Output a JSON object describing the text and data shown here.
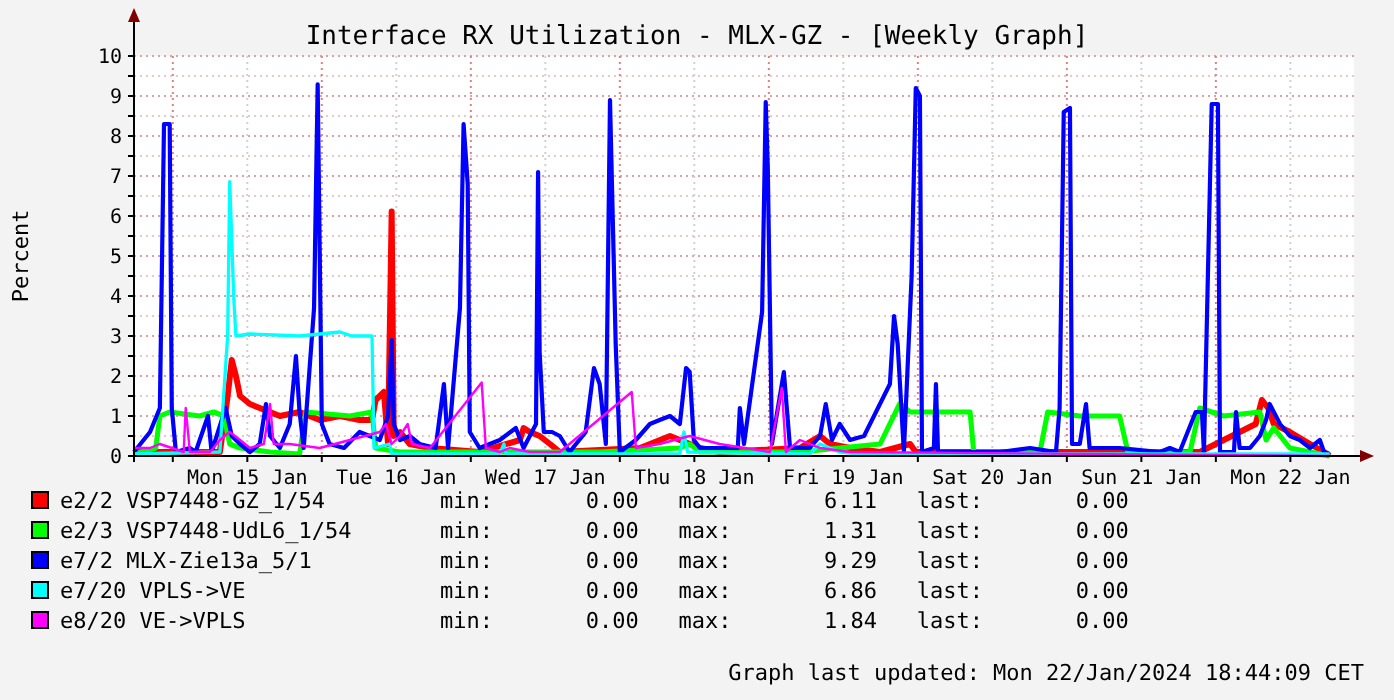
{
  "chart_data": {
    "type": "line",
    "title": "Interface RX Utilization - MLX-GZ - [Weekly Graph]",
    "ylabel": "Percent",
    "grid": true,
    "legend": "bottom",
    "xlim": [
      "2024-01-14T17:45",
      "2024-01-22T22:15"
    ],
    "xticks": [
      {
        "value": "2024-01-15T00:00",
        "label": null
      },
      {
        "value": "2024-01-15T12:00",
        "label": "Mon 15 Jan"
      },
      {
        "value": "2024-01-16T00:00",
        "label": null
      },
      {
        "value": "2024-01-16T12:00",
        "label": "Tue 16 Jan"
      },
      {
        "value": "2024-01-17T00:00",
        "label": null
      },
      {
        "value": "2024-01-17T12:00",
        "label": "Wed 17 Jan"
      },
      {
        "value": "2024-01-18T00:00",
        "label": null
      },
      {
        "value": "2024-01-18T12:00",
        "label": "Thu 18 Jan"
      },
      {
        "value": "2024-01-19T00:00",
        "label": null
      },
      {
        "value": "2024-01-19T12:00",
        "label": "Fri 19 Jan"
      },
      {
        "value": "2024-01-20T00:00",
        "label": null
      },
      {
        "value": "2024-01-20T12:00",
        "label": "Sat 20 Jan"
      },
      {
        "value": "2024-01-21T00:00",
        "label": null
      },
      {
        "value": "2024-01-21T12:00",
        "label": "Sun 21 Jan"
      },
      {
        "value": "2024-01-22T00:00",
        "label": null
      },
      {
        "value": "2024-01-22T12:00",
        "label": "Mon 22 Jan"
      }
    ],
    "ylim": [
      0,
      10
    ],
    "yticks": [
      0,
      {
        "value": 0.5,
        "label": null
      },
      1,
      {
        "value": 1.5,
        "label": null
      },
      2,
      {
        "value": 2.5,
        "label": null
      },
      3,
      {
        "value": 3.5,
        "label": null
      },
      4,
      {
        "value": 4.5,
        "label": null
      },
      5,
      {
        "value": 5.5,
        "label": null
      },
      6,
      {
        "value": 6.5,
        "label": null
      },
      7,
      {
        "value": 7.5,
        "label": null
      },
      8,
      {
        "value": 8.5,
        "label": null
      },
      9,
      {
        "value": 9.5,
        "label": null
      },
      10
    ],
    "annotations": [
      "min:       0.00   max:       6.11   last:       0.00",
      "min:       0.00   max:       1.31   last:       0.00",
      "min:       0.00   max:       9.29   last:       0.00",
      "min:       0.00   max:       6.86   last:       0.00",
      "min:       0.00   max:       1.84   last:       0.00",
      "Graph last updated: Mon 22/Jan/2024 18:44:09 CET"
    ],
    "series": [
      {
        "name": "e2/2 VSP7448-GZ_1/54",
        "color": "#ff0000",
        "x": [
          "2024-01-14T17:45",
          "2024-01-15T07:35",
          "2024-01-15T08:50",
          "2024-01-15T09:30",
          "2024-01-15T10:10",
          "2024-01-15T10:50",
          "2024-01-15T12:25",
          "2024-01-15T14:00",
          "2024-01-15T17:15",
          "2024-01-15T20:25",
          "2024-01-15T23:40",
          "2024-01-16T02:55",
          "2024-01-16T06:05",
          "2024-01-16T08:05",
          "2024-01-16T08:40",
          "2024-01-16T10:00",
          "2024-01-16T10:40",
          "2024-01-16T11:15",
          "2024-01-16T11:35",
          "2024-01-16T12:35",
          "2024-01-16T14:10",
          "2024-01-16T17:25",
          "2024-01-17T01:25",
          "2024-01-17T07:55",
          "2024-01-17T08:30",
          "2024-01-17T09:30",
          "2024-01-17T11:05",
          "2024-01-17T12:45",
          "2024-01-17T14:20",
          "2024-01-18T03:15",
          "2024-01-18T08:05",
          "2024-01-18T09:40",
          "2024-01-18T12:55",
          "2024-01-18T16:05",
          "2024-01-19T05:00",
          "2024-01-19T08:15",
          "2024-01-19T09:50",
          "2024-01-19T13:05",
          "2024-01-19T17:55",
          "2024-01-19T22:45",
          "2024-01-19T23:40",
          "2024-01-20T13:15",
          "2024-01-21T02:05",
          "2024-01-21T21:25",
          "2024-01-22T06:25",
          "2024-01-22T07:25",
          "2024-01-22T08:25",
          "2024-01-22T09:20",
          "2024-01-22T11:55",
          "2024-01-22T15:10",
          "2024-01-22T17:25",
          "2024-01-22T18:20"
        ],
        "values": [
          0.1,
          0.1,
          1.5,
          2.4,
          2.0,
          1.5,
          1.3,
          1.2,
          1.0,
          1.1,
          0.9,
          1.0,
          0.9,
          0.9,
          1.4,
          1.6,
          0.3,
          6.11,
          0.5,
          0.6,
          0.3,
          0.2,
          0.1,
          0.4,
          0.7,
          0.6,
          0.5,
          0.3,
          0.1,
          0.2,
          0.5,
          0.4,
          0.2,
          0.1,
          0.2,
          0.5,
          0.3,
          0.2,
          0.1,
          0.3,
          0.1,
          0.1,
          0.1,
          0.1,
          0.8,
          1.4,
          1.2,
          0.8,
          0.6,
          0.3,
          0.1,
          0
        ]
      },
      {
        "name": "e2/3 VSP7448-UdL6_1/54",
        "color": "#00ff00",
        "x": [
          "2024-01-14T17:45",
          "2024-01-14T21:15",
          "2024-01-14T21:55",
          "2024-01-14T23:30",
          "2024-01-15T04:20",
          "2024-01-15T06:35",
          "2024-01-15T08:15",
          "2024-01-15T09:10",
          "2024-01-15T10:50",
          "2024-01-15T15:40",
          "2024-01-15T20:25",
          "2024-01-15T20:45",
          "2024-01-15T21:25",
          "2024-01-16T04:30",
          "2024-01-16T08:05",
          "2024-01-16T08:40",
          "2024-01-16T12:35",
          "2024-01-17T20:45",
          "2024-01-18T09:40",
          "2024-01-18T11:15",
          "2024-01-18T12:55",
          "2024-01-19T05:00",
          "2024-01-19T17:55",
          "2024-01-19T21:05",
          "2024-01-19T22:45",
          "2024-01-20T08:25",
          "2024-01-20T09:00",
          "2024-01-20T19:40",
          "2024-01-20T20:55",
          "2024-01-21T02:05",
          "2024-01-21T08:30",
          "2024-01-21T09:50",
          "2024-01-21T19:50",
          "2024-01-21T21:25",
          "2024-01-22T01:15",
          "2024-01-22T07:05",
          "2024-01-22T08:05",
          "2024-01-22T09:20",
          "2024-01-22T11:55",
          "2024-01-22T15:10",
          "2024-01-22T18:20"
        ],
        "values": [
          0.05,
          0.2,
          1.0,
          1.1,
          1.0,
          1.1,
          1.0,
          0.3,
          0.2,
          0.1,
          0.05,
          0.4,
          1.1,
          1.0,
          1.1,
          0.2,
          0.1,
          0.1,
          0.2,
          0.3,
          0.1,
          0.1,
          0.3,
          1.31,
          1.1,
          1.1,
          0.1,
          0.1,
          1.1,
          1.0,
          1.0,
          0.1,
          0.1,
          1.2,
          1.0,
          1.1,
          0.4,
          0.7,
          0.2,
          0.1,
          0
        ]
      },
      {
        "name": "e7/2 MLX-Zie13a_5/1",
        "color": "#0000ff",
        "x": [
          "2024-01-14T17:45",
          "2024-01-14T20:20",
          "2024-01-14T21:55",
          "2024-01-14T22:35",
          "2024-01-14T23:30",
          "2024-01-14T23:50",
          "2024-01-15T00:30",
          "2024-01-15T02:45",
          "2024-01-15T03:40",
          "2024-01-15T05:40",
          "2024-01-15T06:15",
          "2024-01-15T08:30",
          "2024-01-15T09:30",
          "2024-01-15T10:50",
          "2024-01-15T12:25",
          "2024-01-15T14:00",
          "2024-01-15T15:00",
          "2024-01-15T15:40",
          "2024-01-15T17:15",
          "2024-01-15T18:50",
          "2024-01-15T19:50",
          "2024-01-15T20:25",
          "2024-01-15T21:05",
          "2024-01-15T22:45",
          "2024-01-15T23:20",
          "2024-01-16T00:00",
          "2024-01-16T01:15",
          "2024-01-16T03:35",
          "2024-01-16T06:05",
          "2024-01-16T09:20",
          "2024-01-16T10:40",
          "2024-01-16T11:15",
          "2024-01-16T11:35",
          "2024-01-16T12:35",
          "2024-01-16T14:10",
          "2024-01-16T15:45",
          "2024-01-16T18:20",
          "2024-01-16T19:40",
          "2024-01-16T20:20",
          "2024-01-16T22:15",
          "2024-01-16T22:50",
          "2024-01-16T23:30",
          "2024-01-16T23:50",
          "2024-01-17T01:25",
          "2024-01-17T04:40",
          "2024-01-17T07:15",
          "2024-01-17T08:30",
          "2024-01-17T10:30",
          "2024-01-17T10:50",
          "2024-01-17T11:05",
          "2024-01-17T11:45",
          "2024-01-17T13:05",
          "2024-01-17T14:20",
          "2024-01-17T15:55",
          "2024-01-17T18:30",
          "2024-01-17T19:50",
          "2024-01-17T20:45",
          "2024-01-17T21:45",
          "2024-01-17T22:25",
          "2024-01-17T23:20",
          "2024-01-18T00:00",
          "2024-01-18T02:35",
          "2024-01-18T04:50",
          "2024-01-18T06:25",
          "2024-01-18T08:05",
          "2024-01-18T09:40",
          "2024-01-18T10:40",
          "2024-01-18T11:15",
          "2024-01-18T11:55",
          "2024-01-18T12:55",
          "2024-01-18T19:00",
          "2024-01-18T19:20",
          "2024-01-18T20:00",
          "2024-01-18T22:55",
          "2024-01-18T23:30",
          "2024-01-18T23:50",
          "2024-01-19T00:30",
          "2024-01-19T02:25",
          "2024-01-19T03:25",
          "2024-01-19T06:35",
          "2024-01-19T08:15",
          "2024-01-19T09:10",
          "2024-01-19T10:10",
          "2024-01-19T11:25",
          "2024-01-19T13:05",
          "2024-01-19T15:20",
          "2024-01-19T19:30",
          "2024-01-19T20:10",
          "2024-01-19T20:45",
          "2024-01-19T21:45",
          "2024-01-19T23:00",
          "2024-01-19T23:40",
          "2024-01-20T00:20",
          "2024-01-20T00:40",
          "2024-01-20T02:35",
          "2024-01-20T02:55",
          "2024-01-20T03:15",
          "2024-01-20T05:10",
          "2024-01-20T13:15",
          "2024-01-20T18:05",
          "2024-01-20T22:15",
          "2024-01-20T22:50",
          "2024-01-20T23:30",
          "2024-01-21T00:30",
          "2024-01-21T00:50",
          "2024-01-21T02:05",
          "2024-01-21T03:05",
          "2024-01-21T03:40",
          "2024-01-21T08:30",
          "2024-01-21T15:00",
          "2024-01-21T16:35",
          "2024-01-21T18:10",
          "2024-01-21T20:45",
          "2024-01-21T21:45",
          "2024-01-21T22:05",
          "2024-01-21T23:20",
          "2024-01-22T00:20",
          "2024-01-22T00:40",
          "2024-01-22T02:55",
          "2024-01-22T03:15",
          "2024-01-22T03:50",
          "2024-01-22T05:30",
          "2024-01-22T07:05",
          "2024-01-22T08:05",
          "2024-01-22T08:40",
          "2024-01-22T09:40",
          "2024-01-22T10:20",
          "2024-01-22T11:55",
          "2024-01-22T13:30",
          "2024-01-22T15:10",
          "2024-01-22T16:45",
          "2024-01-22T17:25",
          "2024-01-22T18:20"
        ],
        "values": [
          0.1,
          0.6,
          1.2,
          8.3,
          8.3,
          1.2,
          0.1,
          0.2,
          0.1,
          1.0,
          0.1,
          1.2,
          0.5,
          0.3,
          0.1,
          0.3,
          1.3,
          0.5,
          0.2,
          0.8,
          2.5,
          1.1,
          0.2,
          3.7,
          9.29,
          0.8,
          0.3,
          0.2,
          0.6,
          0.4,
          1.0,
          2.9,
          0.8,
          0.4,
          0.5,
          0.3,
          0.2,
          1.8,
          0.2,
          3.7,
          8.3,
          6.8,
          0.6,
          0.2,
          0.4,
          0.7,
          0.2,
          0.8,
          7.1,
          2.6,
          0.6,
          0.6,
          0.5,
          0.1,
          0.6,
          2.2,
          1.8,
          0.3,
          8.9,
          2.8,
          0.1,
          0.4,
          0.8,
          0.9,
          1.0,
          0.8,
          2.2,
          2.1,
          0.4,
          0.2,
          0.2,
          1.2,
          0.3,
          3.6,
          8.85,
          7.2,
          0.3,
          2.1,
          0.2,
          0.2,
          0.5,
          1.3,
          0.4,
          0.8,
          0.4,
          0.5,
          1.8,
          3.5,
          2.8,
          0.1,
          4.5,
          9.2,
          9.0,
          0.1,
          0.2,
          1.8,
          0.1,
          0.1,
          0.1,
          0.2,
          0.1,
          1.2,
          8.6,
          8.7,
          0.3,
          0.3,
          1.3,
          0.2,
          0.2,
          0.1,
          0.2,
          0.1,
          1.1,
          1.1,
          0.1,
          8.8,
          8.8,
          0.1,
          0.1,
          1.1,
          0.2,
          0.2,
          0.5,
          0.9,
          1.3,
          1.0,
          0.8,
          0.5,
          0.4,
          0.2,
          0.4,
          0.1,
          0.05
        ]
      },
      {
        "name": "e7/20 VPLS->VE",
        "color": "#00ffff",
        "x": [
          "2024-01-14T17:45",
          "2024-01-15T07:35",
          "2024-01-15T08:50",
          "2024-01-15T09:10",
          "2024-01-15T09:50",
          "2024-01-15T10:10",
          "2024-01-15T12:25",
          "2024-01-15T20:25",
          "2024-01-16T02:55",
          "2024-01-16T04:50",
          "2024-01-16T08:05",
          "2024-01-16T08:25",
          "2024-01-16T10:55",
          "2024-01-16T11:15",
          "2024-01-17T04:40",
          "2024-01-17T05:20",
          "2024-01-17T05:40",
          "2024-01-18T09:40",
          "2024-01-18T10:20",
          "2024-01-18T10:55",
          "2024-01-19T06:35",
          "2024-01-19T08:15",
          "2024-01-19T09:50",
          "2024-01-19T11:25",
          "2024-01-19T14:40",
          "2024-01-22T18:20"
        ],
        "values": [
          0.05,
          0.1,
          3.0,
          6.86,
          3.9,
          3.0,
          3.05,
          3.0,
          3.1,
          3.0,
          3.0,
          0.2,
          0.3,
          0.05,
          0.05,
          0.3,
          0.05,
          0.05,
          0.6,
          0.1,
          0.05,
          0.3,
          0.2,
          0.1,
          0.05,
          0.05
        ]
      },
      {
        "name": "e8/20 VE->VPLS",
        "color": "#ff00ff",
        "x": [
          "2024-01-14T17:45",
          "2024-01-14T20:20",
          "2024-01-14T21:55",
          "2024-01-15T01:45",
          "2024-01-15T02:05",
          "2024-01-15T02:45",
          "2024-01-15T06:00",
          "2024-01-15T07:35",
          "2024-01-15T09:10",
          "2024-01-15T10:50",
          "2024-01-15T12:25",
          "2024-01-15T14:40",
          "2024-01-15T15:40",
          "2024-01-15T16:15",
          "2024-01-15T18:50",
          "2024-01-15T23:40",
          "2024-01-16T09:20",
          "2024-01-16T10:20",
          "2024-01-16T11:15",
          "2024-01-16T12:35",
          "2024-01-16T13:50",
          "2024-01-16T14:30",
          "2024-01-16T17:25",
          "2024-01-17T01:45",
          "2024-01-17T02:25",
          "2024-01-17T04:40",
          "2024-01-17T06:15",
          "2024-01-17T09:30",
          "2024-01-17T14:20",
          "2024-01-18T01:55",
          "2024-01-18T02:35",
          "2024-01-18T06:25",
          "2024-01-18T11:15",
          "2024-01-18T16:05",
          "2024-01-19T00:10",
          "2024-01-19T02:05",
          "2024-01-19T02:45",
          "2024-01-19T05:00",
          "2024-01-19T08:15",
          "2024-01-19T13:05",
          "2024-01-22T18:20"
        ],
        "values": [
          0.2,
          0.2,
          0.3,
          0.1,
          1.2,
          0.1,
          0.1,
          0.4,
          0.6,
          0.4,
          0.2,
          0.3,
          1.3,
          0.3,
          0.3,
          0.2,
          0.6,
          0.8,
          0.3,
          0.5,
          0.8,
          0.3,
          0.2,
          1.84,
          0.2,
          0.1,
          0.2,
          0.1,
          0.1,
          1.6,
          0.2,
          0.3,
          0.5,
          0.3,
          0.1,
          1.7,
          0.1,
          0.4,
          0.2,
          0.1,
          0
        ]
      }
    ]
  }
}
